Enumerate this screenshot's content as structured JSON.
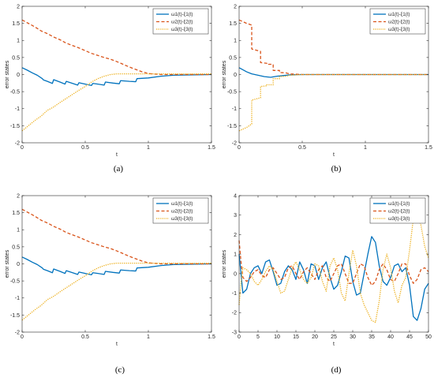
{
  "colors": {
    "s1": "#0072BD",
    "s2": "#D95319",
    "s3": "#EDB120"
  },
  "panels": [
    {
      "caption": "(a)",
      "xlabel": "t",
      "ylabel": "error states",
      "xlim": [
        0,
        1.5
      ],
      "ylim": [
        -2,
        2
      ],
      "xticks": [
        0,
        0.5,
        1,
        1.5
      ],
      "yticks": [
        -2,
        -1.5,
        -1,
        -0.5,
        0,
        0.5,
        1,
        1.5,
        2
      ],
      "xtick_labels": [
        "0",
        "0.5",
        "1",
        "1.5"
      ],
      "ytick_labels": [
        "-2",
        "-1.5",
        "-1",
        "-0.5",
        "0",
        "0.5",
        "1",
        "1.5",
        "2"
      ],
      "legend": [
        "ω1(t)-ξ1(t)",
        "ω2(t)-ξ2(t)",
        "ω3(t)-ξ3(t)"
      ],
      "series": [
        {
          "x": [
            0,
            0.04,
            0.08,
            0.12,
            0.16,
            0.17,
            0.2,
            0.24,
            0.25,
            0.3,
            0.34,
            0.35,
            0.4,
            0.44,
            0.45,
            0.5,
            0.55,
            0.56,
            0.6,
            0.65,
            0.66,
            0.72,
            0.77,
            0.78,
            0.85,
            0.9,
            0.91,
            1.0,
            1.1,
            1.2,
            1.5
          ],
          "y": [
            0.2,
            0.13,
            0.05,
            -0.02,
            -0.12,
            -0.16,
            -0.2,
            -0.26,
            -0.15,
            -0.22,
            -0.28,
            -0.2,
            -0.26,
            -0.31,
            -0.24,
            -0.28,
            -0.32,
            -0.26,
            -0.28,
            -0.31,
            -0.22,
            -0.25,
            -0.27,
            -0.18,
            -0.2,
            -0.21,
            -0.12,
            -0.1,
            -0.05,
            -0.02,
            0
          ]
        },
        {
          "x": [
            0,
            0.05,
            0.1,
            0.15,
            0.2,
            0.25,
            0.3,
            0.35,
            0.4,
            0.45,
            0.5,
            0.55,
            0.6,
            0.65,
            0.7,
            0.75,
            0.8,
            0.85,
            0.9,
            0.95,
            1.0,
            1.1,
            1.2,
            1.5
          ],
          "y": [
            1.6,
            1.5,
            1.4,
            1.28,
            1.2,
            1.1,
            1.02,
            0.92,
            0.85,
            0.78,
            0.7,
            0.62,
            0.56,
            0.5,
            0.45,
            0.38,
            0.3,
            0.22,
            0.15,
            0.08,
            0.03,
            0.0,
            0.0,
            0.0
          ]
        },
        {
          "x": [
            0,
            0.05,
            0.1,
            0.15,
            0.2,
            0.25,
            0.3,
            0.35,
            0.4,
            0.45,
            0.5,
            0.55,
            0.6,
            0.65,
            0.7,
            0.75,
            0.8,
            0.9,
            1.0,
            1.5
          ],
          "y": [
            -1.65,
            -1.5,
            -1.35,
            -1.22,
            -1.05,
            -0.95,
            -0.82,
            -0.7,
            -0.58,
            -0.46,
            -0.35,
            -0.22,
            -0.12,
            -0.05,
            0.0,
            0.02,
            0.02,
            0.02,
            0.02,
            0.02
          ]
        }
      ]
    },
    {
      "caption": "(b)",
      "xlabel": "t",
      "ylabel": "error states",
      "xlim": [
        0,
        1.5
      ],
      "ylim": [
        -2,
        2
      ],
      "xticks": [
        0,
        0.5,
        1,
        1.5
      ],
      "yticks": [
        -2,
        -1.5,
        -1,
        -0.5,
        0,
        0.5,
        1,
        1.5,
        2
      ],
      "xtick_labels": [
        "0",
        "0.5",
        "1",
        "1.5"
      ],
      "ytick_labels": [
        "-2",
        "-1.5",
        "-1",
        "-0.5",
        "0",
        "0.5",
        "1",
        "1.5",
        "2"
      ],
      "legend": [
        "ω1(t)-ξ1(t)",
        "ω2(t)-ξ2(t)",
        "ω3(t)-ξ3(t)"
      ],
      "series": [
        {
          "x": [
            0,
            0.03,
            0.06,
            0.1,
            0.15,
            0.2,
            0.25,
            0.3,
            0.35,
            0.4,
            0.5,
            1.5
          ],
          "y": [
            0.2,
            0.14,
            0.08,
            0.02,
            -0.02,
            -0.06,
            -0.08,
            -0.05,
            -0.03,
            -0.01,
            0,
            0
          ]
        },
        {
          "x": [
            0,
            0.06,
            0.06,
            0.1,
            0.1,
            0.15,
            0.17,
            0.17,
            0.22,
            0.22,
            0.27,
            0.27,
            0.32,
            0.32,
            0.37,
            0.4,
            0.5,
            1.5
          ],
          "y": [
            1.6,
            1.5,
            1.5,
            1.45,
            0.75,
            0.7,
            0.68,
            0.35,
            0.33,
            0.3,
            0.3,
            0.12,
            0.12,
            0.06,
            0.05,
            0.02,
            0,
            0
          ]
        },
        {
          "x": [
            0,
            0.06,
            0.06,
            0.1,
            0.1,
            0.15,
            0.17,
            0.17,
            0.22,
            0.22,
            0.27,
            0.27,
            0.32,
            0.32,
            0.37,
            0.4,
            0.5,
            1.5
          ],
          "y": [
            -1.65,
            -1.55,
            -1.55,
            -1.45,
            -0.75,
            -0.7,
            -0.68,
            -0.35,
            -0.33,
            -0.3,
            -0.3,
            -0.12,
            -0.12,
            -0.06,
            -0.05,
            -0.02,
            0,
            0
          ]
        }
      ]
    },
    {
      "caption": "(c)",
      "xlabel": "t",
      "ylabel": "error states",
      "xlim": [
        0,
        1.5
      ],
      "ylim": [
        -2,
        2
      ],
      "xticks": [
        0,
        0.5,
        1,
        1.5
      ],
      "yticks": [
        -2,
        -1.5,
        -1,
        -0.5,
        0,
        0.5,
        1,
        1.5,
        2
      ],
      "xtick_labels": [
        "0",
        "0.5",
        "1",
        "1.5"
      ],
      "ytick_labels": [
        "-2",
        "-1.5",
        "-1",
        "-0.5",
        "0",
        "0.5",
        "1",
        "1.5",
        "2"
      ],
      "legend": [
        "ω1(t)-ξ1(t)",
        "ω2(t)-ξ2(t)",
        "ω3(t)-ξ3(t)"
      ],
      "series": [
        {
          "x": [
            0,
            0.04,
            0.08,
            0.12,
            0.16,
            0.17,
            0.2,
            0.24,
            0.25,
            0.3,
            0.34,
            0.35,
            0.4,
            0.44,
            0.45,
            0.5,
            0.55,
            0.56,
            0.6,
            0.65,
            0.66,
            0.72,
            0.77,
            0.78,
            0.85,
            0.9,
            0.91,
            1.0,
            1.1,
            1.2,
            1.5
          ],
          "y": [
            0.2,
            0.13,
            0.05,
            -0.02,
            -0.12,
            -0.16,
            -0.2,
            -0.26,
            -0.15,
            -0.22,
            -0.28,
            -0.2,
            -0.26,
            -0.31,
            -0.24,
            -0.28,
            -0.32,
            -0.26,
            -0.28,
            -0.31,
            -0.22,
            -0.25,
            -0.27,
            -0.18,
            -0.2,
            -0.21,
            -0.12,
            -0.1,
            -0.05,
            -0.02,
            0
          ]
        },
        {
          "x": [
            0,
            0.05,
            0.1,
            0.15,
            0.2,
            0.25,
            0.3,
            0.35,
            0.4,
            0.45,
            0.5,
            0.55,
            0.6,
            0.65,
            0.7,
            0.75,
            0.8,
            0.85,
            0.9,
            0.95,
            1.0,
            1.1,
            1.2,
            1.5
          ],
          "y": [
            1.6,
            1.5,
            1.4,
            1.28,
            1.2,
            1.1,
            1.02,
            0.92,
            0.85,
            0.78,
            0.7,
            0.62,
            0.56,
            0.5,
            0.45,
            0.38,
            0.3,
            0.22,
            0.15,
            0.08,
            0.03,
            0.0,
            0.0,
            0.0
          ]
        },
        {
          "x": [
            0,
            0.05,
            0.1,
            0.15,
            0.2,
            0.25,
            0.3,
            0.35,
            0.4,
            0.45,
            0.5,
            0.55,
            0.6,
            0.65,
            0.7,
            0.75,
            0.8,
            0.9,
            1.0,
            1.5
          ],
          "y": [
            -1.65,
            -1.5,
            -1.35,
            -1.22,
            -1.05,
            -0.95,
            -0.82,
            -0.7,
            -0.58,
            -0.46,
            -0.35,
            -0.22,
            -0.12,
            -0.05,
            0.0,
            0.02,
            0.02,
            0.02,
            0.02,
            0.02
          ]
        }
      ]
    },
    {
      "caption": "(d)",
      "xlabel": "t",
      "ylabel": "error states",
      "xlim": [
        0,
        50
      ],
      "ylim": [
        -3,
        4
      ],
      "xticks": [
        0,
        5,
        10,
        15,
        20,
        25,
        30,
        35,
        40,
        45,
        50
      ],
      "yticks": [
        -3,
        -2,
        -1,
        0,
        1,
        2,
        3,
        4
      ],
      "xtick_labels": [
        "0",
        "5",
        "10",
        "15",
        "20",
        "25",
        "30",
        "35",
        "40",
        "45",
        "50"
      ],
      "ytick_labels": [
        "-3",
        "-2",
        "-1",
        "0",
        "1",
        "2",
        "3",
        "4"
      ],
      "legend": [
        "ω1(t)-ξ1(t)",
        "ω2(t)-ξ2(t)",
        "ω3(t)-ξ3(t)"
      ],
      "series": [
        {
          "x": [
            0,
            0.5,
            1,
            2,
            3,
            4,
            5,
            6,
            7,
            8,
            9,
            10,
            11,
            12,
            13,
            14,
            15,
            16,
            17,
            18,
            19,
            20,
            21,
            22,
            23,
            24,
            25,
            26,
            27,
            28,
            29,
            30,
            31,
            32,
            33,
            34,
            35,
            36,
            37,
            38,
            39,
            40,
            41,
            42,
            43,
            44,
            45,
            46,
            47,
            48,
            49,
            50
          ],
          "y": [
            1.0,
            0.0,
            -1.0,
            -0.8,
            0.0,
            0.3,
            0.4,
            0.0,
            0.6,
            0.7,
            0.1,
            -0.6,
            -0.5,
            0.1,
            0.4,
            0.2,
            -0.3,
            0.6,
            0.2,
            -0.5,
            0.5,
            0.4,
            -0.3,
            0.3,
            0.6,
            -0.2,
            -0.8,
            -0.6,
            0.1,
            0.9,
            0.8,
            -0.4,
            -1.1,
            -1.0,
            0.0,
            1.0,
            1.9,
            1.6,
            0.4,
            -0.4,
            -0.6,
            -0.2,
            0.4,
            0.5,
            0.1,
            0.3,
            -0.6,
            -2.2,
            -2.4,
            -1.8,
            -0.8,
            -0.5
          ]
        },
        {
          "x": [
            0,
            0.5,
            1,
            2,
            3,
            4,
            5,
            6,
            7,
            8,
            9,
            10,
            11,
            12,
            13,
            14,
            15,
            16,
            17,
            18,
            19,
            20,
            21,
            22,
            23,
            24,
            25,
            26,
            27,
            28,
            29,
            30,
            31,
            32,
            33,
            34,
            35,
            36,
            37,
            38,
            39,
            40,
            41,
            42,
            43,
            44,
            45,
            46,
            47,
            48,
            49,
            50
          ],
          "y": [
            1.7,
            0.6,
            -0.2,
            -0.4,
            -0.2,
            0.1,
            0.2,
            -0.1,
            -0.2,
            0.2,
            0.3,
            0.0,
            -0.3,
            -0.2,
            0.3,
            0.4,
            0.0,
            -0.3,
            0.1,
            0.3,
            0.0,
            -0.3,
            0.2,
            0.4,
            -0.2,
            -0.4,
            0.0,
            0.4,
            0.5,
            0.0,
            -0.5,
            -0.5,
            0.0,
            0.5,
            0.4,
            -0.2,
            -0.6,
            -0.4,
            0.2,
            0.5,
            0.2,
            -0.3,
            -0.4,
            0.0,
            0.5,
            0.5,
            -0.1,
            -0.5,
            -0.3,
            0.2,
            0.3,
            0.1
          ]
        },
        {
          "x": [
            0,
            0.5,
            1,
            2,
            3,
            4,
            5,
            6,
            7,
            8,
            9,
            10,
            11,
            12,
            13,
            14,
            15,
            16,
            17,
            18,
            19,
            20,
            21,
            22,
            23,
            24,
            25,
            26,
            27,
            28,
            29,
            30,
            31,
            32,
            33,
            34,
            35,
            36,
            37,
            38,
            39,
            40,
            41,
            42,
            43,
            44,
            45,
            46,
            47,
            48,
            49,
            50
          ],
          "y": [
            -1.6,
            -0.5,
            0.3,
            0.2,
            0.0,
            -0.4,
            -0.6,
            -0.3,
            0.1,
            0.4,
            0.2,
            -0.4,
            -1.0,
            -0.9,
            -0.3,
            0.3,
            0.6,
            0.2,
            -0.3,
            -0.5,
            -0.2,
            0.5,
            0.4,
            -0.4,
            -0.9,
            0.4,
            0.8,
            0.2,
            -1.0,
            -1.4,
            0.0,
            1.2,
            0.4,
            -1.0,
            -1.6,
            -2.0,
            -2.4,
            -2.5,
            -1.4,
            0.2,
            1.0,
            0.3,
            -0.9,
            -1.5,
            -0.6,
            -0.2,
            1.2,
            2.8,
            3.0,
            2.5,
            1.4,
            0.8
          ]
        }
      ]
    }
  ]
}
